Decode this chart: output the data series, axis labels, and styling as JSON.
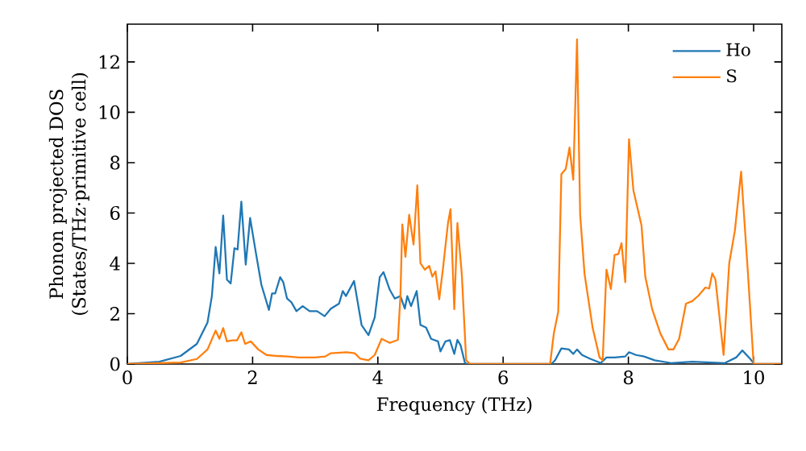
{
  "chart_data": {
    "type": "line",
    "xlabel": "Frequency (THz)",
    "ylabel": "Phonon projected DOS\n(States/THz·primitive cell)",
    "xlim": [
      0,
      10.45
    ],
    "ylim": [
      0,
      13.5
    ],
    "xticks": [
      0,
      2,
      4,
      6,
      8,
      10
    ],
    "yticks": [
      0,
      2,
      4,
      6,
      8,
      10,
      12
    ],
    "legend": "top right",
    "grid": false,
    "marker": "none",
    "line_style": "solid",
    "series": [
      {
        "name": "Ho",
        "color": "#1f77b4",
        "x": [
          0,
          0.51,
          0.85,
          1.11,
          1.28,
          1.35,
          1.41,
          1.47,
          1.53,
          1.59,
          1.65,
          1.71,
          1.76,
          1.82,
          1.89,
          1.96,
          2.05,
          2.14,
          2.26,
          2.31,
          2.36,
          2.44,
          2.49,
          2.55,
          2.62,
          2.7,
          2.8,
          2.91,
          3.03,
          3.15,
          3.25,
          3.38,
          3.44,
          3.49,
          3.62,
          3.74,
          3.85,
          3.95,
          4.03,
          4.09,
          4.19,
          4.27,
          4.36,
          4.43,
          4.47,
          4.53,
          4.62,
          4.68,
          4.77,
          4.85,
          4.96,
          5.0,
          5.08,
          5.15,
          5.22,
          5.27,
          5.32,
          5.39,
          5.42,
          6.77,
          6.83,
          6.93,
          7.05,
          7.12,
          7.18,
          7.26,
          7.39,
          7.56,
          7.65,
          7.78,
          7.95,
          8.01,
          8.12,
          8.25,
          8.42,
          8.68,
          9.02,
          9.54,
          9.72,
          9.82,
          9.95,
          10.01,
          10.44
        ],
        "values": [
          0,
          0.09,
          0.32,
          0.8,
          1.65,
          2.7,
          4.65,
          3.6,
          5.9,
          3.35,
          3.2,
          4.6,
          4.55,
          6.45,
          3.95,
          5.8,
          4.45,
          3.15,
          2.15,
          2.8,
          2.8,
          3.45,
          3.25,
          2.6,
          2.45,
          2.1,
          2.3,
          2.1,
          2.1,
          1.9,
          2.2,
          2.4,
          2.9,
          2.7,
          3.3,
          1.55,
          1.15,
          1.85,
          3.45,
          3.65,
          2.95,
          2.6,
          2.7,
          2.2,
          2.7,
          2.3,
          2.9,
          1.55,
          1.45,
          1.0,
          0.9,
          0.5,
          0.9,
          0.95,
          0.4,
          0.96,
          0.75,
          0.05,
          0,
          0,
          0.15,
          0.62,
          0.58,
          0.4,
          0.58,
          0.36,
          0.21,
          0.04,
          0.26,
          0.26,
          0.3,
          0.47,
          0.36,
          0.3,
          0.15,
          0.04,
          0.09,
          0.04,
          0.26,
          0.54,
          0.19,
          0,
          0
        ]
      },
      {
        "name": "S",
        "color": "#ff7f0e",
        "x": [
          0,
          0.85,
          1.11,
          1.28,
          1.41,
          1.47,
          1.53,
          1.59,
          1.67,
          1.75,
          1.82,
          1.88,
          1.97,
          2.09,
          2.22,
          2.39,
          2.56,
          2.74,
          2.99,
          3.16,
          3.25,
          3.5,
          3.63,
          3.72,
          3.85,
          3.95,
          4.06,
          4.19,
          4.32,
          4.36,
          4.39,
          4.44,
          4.5,
          4.57,
          4.63,
          4.68,
          4.75,
          4.82,
          4.87,
          4.92,
          4.98,
          5.04,
          5.12,
          5.16,
          5.22,
          5.27,
          5.34,
          5.41,
          5.47,
          6.75,
          6.81,
          6.88,
          6.93,
          7.0,
          7.06,
          7.12,
          7.18,
          7.23,
          7.3,
          7.43,
          7.54,
          7.59,
          7.65,
          7.72,
          7.78,
          7.84,
          7.89,
          7.95,
          8.01,
          8.08,
          8.21,
          8.27,
          8.38,
          8.51,
          8.64,
          8.72,
          8.81,
          8.92,
          9.02,
          9.12,
          9.23,
          9.29,
          9.34,
          9.39,
          9.52,
          9.61,
          9.7,
          9.8,
          9.91,
          10.0,
          10.44
        ],
        "values": [
          0,
          0.06,
          0.2,
          0.58,
          1.33,
          1.0,
          1.43,
          0.9,
          0.94,
          0.94,
          1.26,
          0.8,
          0.9,
          0.58,
          0.36,
          0.32,
          0.3,
          0.26,
          0.26,
          0.3,
          0.43,
          0.47,
          0.43,
          0.21,
          0.15,
          0.36,
          1.0,
          0.84,
          0.96,
          2.7,
          5.55,
          4.26,
          5.93,
          4.75,
          7.1,
          4.0,
          3.75,
          3.9,
          3.47,
          3.68,
          2.57,
          3.8,
          5.6,
          6.15,
          2.18,
          5.6,
          3.57,
          0.15,
          0,
          0,
          1.22,
          2.08,
          7.54,
          7.75,
          8.6,
          7.32,
          12.9,
          5.93,
          3.58,
          1.43,
          0.26,
          0.15,
          3.75,
          2.98,
          4.33,
          4.37,
          4.8,
          3.25,
          8.93,
          6.9,
          5.5,
          3.47,
          2.18,
          1.22,
          0.58,
          0.58,
          1.0,
          2.4,
          2.5,
          2.72,
          3.04,
          3.0,
          3.6,
          3.36,
          0.36,
          4.0,
          5.29,
          7.64,
          3.57,
          0,
          0
        ]
      }
    ]
  }
}
